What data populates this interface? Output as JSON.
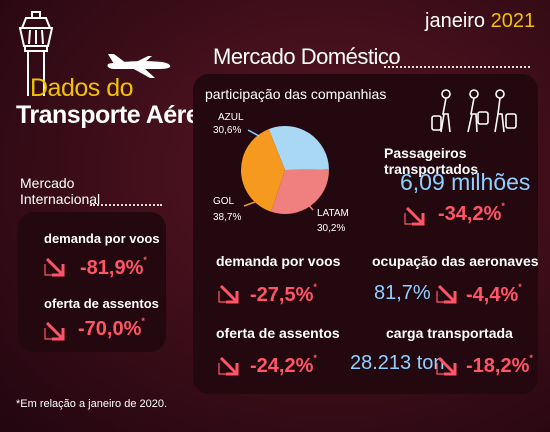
{
  "header": {
    "month": "janeiro",
    "year": "2021",
    "title_line1": "Dados do",
    "title_line2": "Transporte Aéreo"
  },
  "domestic": {
    "section_title": "Mercado Doméstico",
    "share_title": "participação das companhias",
    "passengers_label": "Passageiros transportados",
    "passengers_value": "6,09 milhões",
    "passengers_change": "-34,2%",
    "demand_label": "demanda por voos",
    "demand_change": "-27,5%",
    "occupancy_label": "ocupação das aeronaves",
    "occupancy_value": "81,7%",
    "occupancy_change": "-4,4%",
    "seats_label": "oferta de assentos",
    "seats_change": "-24,2%",
    "cargo_label": "carga transportada",
    "cargo_value": "28.213 ton",
    "cargo_change": "-18,2%"
  },
  "international": {
    "section_line1": "Mercado",
    "section_line2": "Internacional",
    "demand_label": "demanda por voos",
    "demand_change": "-81,9%",
    "seats_label": "oferta de assentos",
    "seats_change": "-70,0%"
  },
  "asterisk": "*",
  "footnote": "*Em relação a janeiro de 2020.",
  "chart_data": {
    "type": "pie",
    "title": "participação das companhias",
    "slices": [
      {
        "name": "AZUL",
        "label": "30,6%",
        "value": 30.6,
        "color": "#a9d8f5"
      },
      {
        "name": "LATAM",
        "label": "30,2%",
        "value": 30.2,
        "color": "#f07f7f"
      },
      {
        "name": "GOL",
        "label": "38,7%",
        "value": 38.7,
        "color": "#f59a1e"
      }
    ]
  },
  "colors": {
    "accent_yellow": "#f2c200",
    "negative_red": "#ff5566",
    "value_blue": "#8fd0ff",
    "panel": "#240810"
  },
  "icons": [
    "control-tower-icon",
    "airplane-icon",
    "travelers-icon",
    "down-arrow-icon"
  ]
}
